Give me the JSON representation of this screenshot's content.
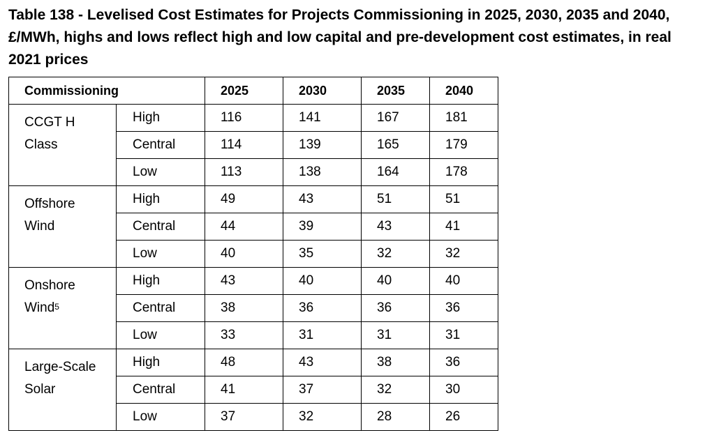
{
  "caption": "Table 138 - Levelised Cost Estimates for Projects Commissioning in 2025, 2030, 2035 and 2040, £/MWh, highs and lows reflect high and low capital and pre-development cost estimates, in real 2021 prices",
  "table": {
    "header": {
      "first": "Commissioning",
      "years": [
        "2025",
        "2030",
        "2035",
        "2040"
      ]
    },
    "groups": [
      {
        "tech_line1": "CCGT H",
        "tech_line2": "Class",
        "tech_sup": "",
        "rows": [
          {
            "case": "High",
            "values": [
              "116",
              "141",
              "167",
              "181"
            ]
          },
          {
            "case": "Central",
            "values": [
              "114",
              "139",
              "165",
              "179"
            ]
          },
          {
            "case": "Low",
            "values": [
              "113",
              "138",
              "164",
              "178"
            ]
          }
        ]
      },
      {
        "tech_line1": "Offshore",
        "tech_line2": "Wind",
        "tech_sup": "",
        "rows": [
          {
            "case": "High",
            "values": [
              "49",
              "43",
              "51",
              "51"
            ]
          },
          {
            "case": "Central",
            "values": [
              "44",
              "39",
              "43",
              "41"
            ]
          },
          {
            "case": "Low",
            "values": [
              "40",
              "35",
              "32",
              "32"
            ]
          }
        ]
      },
      {
        "tech_line1": "Onshore",
        "tech_line2": "Wind",
        "tech_sup": "5",
        "rows": [
          {
            "case": "High",
            "values": [
              "43",
              "40",
              "40",
              "40"
            ]
          },
          {
            "case": "Central",
            "values": [
              "38",
              "36",
              "36",
              "36"
            ]
          },
          {
            "case": "Low",
            "values": [
              "33",
              "31",
              "31",
              "31"
            ]
          }
        ]
      },
      {
        "tech_line1": "Large-Scale",
        "tech_line2": "Solar",
        "tech_sup": "",
        "rows": [
          {
            "case": "High",
            "values": [
              "48",
              "43",
              "38",
              "36"
            ]
          },
          {
            "case": "Central",
            "values": [
              "41",
              "37",
              "32",
              "30"
            ]
          },
          {
            "case": "Low",
            "values": [
              "37",
              "32",
              "28",
              "26"
            ]
          }
        ]
      }
    ]
  }
}
